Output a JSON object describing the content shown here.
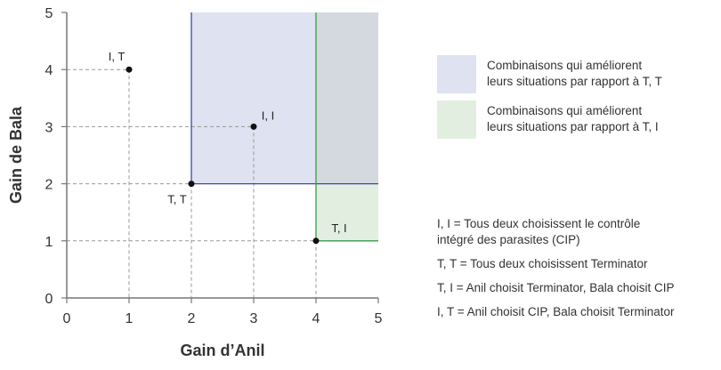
{
  "chart_data": {
    "type": "scatter",
    "title": "",
    "xlabel": "Gain d’Anil",
    "ylabel": "Gain de Bala",
    "xlim": [
      0,
      5
    ],
    "ylim": [
      0,
      5
    ],
    "xticks": [
      "0",
      "1",
      "2",
      "3",
      "4",
      "5"
    ],
    "yticks": [
      "0",
      "1",
      "2",
      "3",
      "4",
      "5"
    ],
    "grid": false,
    "points": [
      {
        "label": "I, T",
        "x": 1,
        "y": 4
      },
      {
        "label": "I, I",
        "x": 3,
        "y": 3
      },
      {
        "label": "T, T",
        "x": 2,
        "y": 2
      },
      {
        "label": "T, I",
        "x": 4,
        "y": 1
      }
    ],
    "regions": [
      {
        "name": "Combinaisons qui améliorent leurs situations par rapport à T, T",
        "x_from": 2,
        "y_from": 2,
        "fill": "#dfe2f1",
        "border": "#3949ab"
      },
      {
        "name": "Combinaisons qui améliorent leurs situations par rapport à T, I",
        "x_from": 4,
        "y_from": 1,
        "fill": "#e2efe0",
        "border": "#3b9a4a"
      }
    ],
    "overlap_fill": "#d3d9de",
    "legend_position": "right"
  },
  "legend": {
    "items": [
      {
        "label_line1": "Combinaisons qui améliorent",
        "label_line2": "leurs situations par rapport à T, T",
        "color": "#dfe2f1"
      },
      {
        "label_line1": "Combinaisons qui améliorent",
        "label_line2": "leurs situations par rapport à T, I",
        "color": "#e2efe0"
      }
    ]
  },
  "key": {
    "items": [
      {
        "line1": "I, I = Tous deux choisissent le contrôle",
        "line2": "intégré des parasites (CIP)"
      },
      {
        "line1": "T, T = Tous deux choisissent Terminator",
        "line2": ""
      },
      {
        "line1": "T, I = Anil choisit Terminator, Bala choisit CIP",
        "line2": ""
      },
      {
        "line1": "I, T = Anil choisit CIP, Bala choisit Terminator",
        "line2": ""
      }
    ]
  }
}
